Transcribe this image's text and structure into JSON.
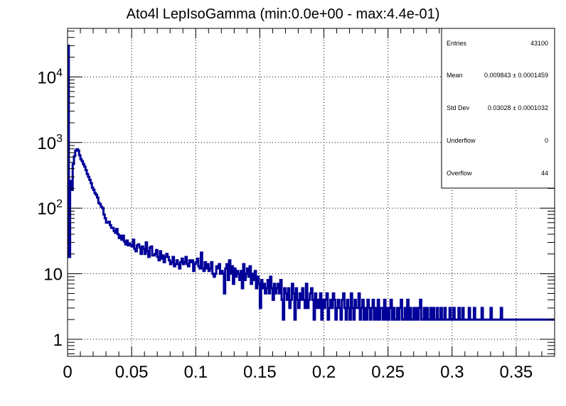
{
  "chart_data": {
    "type": "histogram",
    "title": "Ato4l LepIsoGamma (min:0.0e+00 - max:4.4e-01)",
    "xlabel": "",
    "ylabel": "",
    "xlim": [
      0,
      0.38
    ],
    "ylim": [
      0.55,
      55000
    ],
    "yscale": "log",
    "grid": true,
    "line_color": "#000099",
    "x_ticks": [
      {
        "value": 0,
        "label": "0"
      },
      {
        "value": 0.05,
        "label": "0.05"
      },
      {
        "value": 0.1,
        "label": "0.1"
      },
      {
        "value": 0.15,
        "label": "0.15"
      },
      {
        "value": 0.2,
        "label": "0.2"
      },
      {
        "value": 0.25,
        "label": "0.25"
      },
      {
        "value": 0.3,
        "label": "0.3"
      },
      {
        "value": 0.35,
        "label": "0.35"
      }
    ],
    "y_ticks": [
      {
        "value": 1,
        "base": "1",
        "exp": ""
      },
      {
        "value": 10,
        "base": "10",
        "exp": ""
      },
      {
        "value": 100,
        "base": "10",
        "exp": "2"
      },
      {
        "value": 1000,
        "base": "10",
        "exp": "3"
      },
      {
        "value": 10000,
        "base": "10",
        "exp": "4"
      }
    ],
    "bin_width": 0.001,
    "series": [
      {
        "values": [
          30000,
          18,
          260,
          190,
          470,
          620,
          750,
          790,
          760,
          640,
          560,
          520,
          470,
          430,
          380,
          330,
          300,
          270,
          240,
          205,
          190,
          170,
          160,
          145,
          120,
          115,
          105,
          100,
          80,
          70,
          60,
          60,
          62,
          55,
          50,
          50,
          45,
          42,
          48,
          40,
          35,
          38,
          33,
          38,
          31,
          28,
          32,
          27,
          29,
          27,
          26,
          33,
          24,
          22,
          27,
          28,
          25,
          20,
          26,
          24,
          20,
          30,
          22,
          18,
          25,
          26,
          19,
          19,
          20,
          23,
          18,
          16,
          22,
          17,
          19,
          15,
          18,
          20,
          18,
          16,
          14,
          15,
          18,
          13,
          14,
          16,
          14,
          12,
          15,
          17,
          14,
          15,
          18,
          14,
          13,
          16,
          15,
          16,
          11,
          14,
          15,
          17,
          13,
          12,
          21,
          12,
          11,
          15,
          12,
          14,
          11,
          12,
          15,
          10,
          9,
          10,
          13,
          12,
          14,
          10,
          11,
          10,
          5,
          12,
          14,
          8,
          16,
          10,
          13,
          7,
          12,
          9,
          11,
          10,
          8,
          11,
          6,
          14,
          8,
          10,
          12,
          9,
          13,
          7,
          10,
          8,
          11,
          6,
          9,
          7,
          3,
          8,
          6,
          7,
          5,
          6,
          8,
          5,
          9,
          6,
          4,
          7,
          5,
          6,
          7,
          5,
          8,
          4,
          2,
          6,
          5,
          4,
          6,
          3,
          4,
          7,
          5,
          2,
          6,
          4,
          3,
          5,
          4,
          6,
          4,
          3,
          7,
          3,
          4,
          5,
          6,
          4,
          2,
          5,
          3,
          4,
          3,
          5,
          2,
          4,
          3,
          4,
          5,
          2,
          3,
          4,
          3,
          5,
          4,
          2,
          3,
          4,
          3,
          2,
          4,
          5,
          3,
          2,
          4,
          3,
          2,
          5,
          3,
          2,
          4,
          3,
          3,
          5,
          2,
          3,
          4,
          2,
          3,
          2,
          4,
          3,
          2,
          3,
          4,
          2,
          3,
          2,
          4,
          2,
          3,
          3,
          2,
          4,
          2,
          3,
          2,
          3,
          4,
          2,
          3,
          2,
          2,
          3,
          2,
          3,
          4,
          2,
          2,
          3,
          2,
          4,
          2,
          3,
          2,
          2,
          3,
          2,
          3,
          2,
          3,
          4,
          2,
          2,
          3,
          2,
          3,
          2,
          2,
          3,
          2,
          3,
          2,
          2,
          3,
          2,
          2,
          3,
          2,
          2,
          3,
          2,
          2,
          2,
          3,
          2,
          2,
          3,
          2,
          2,
          2,
          3,
          2,
          2,
          3,
          2,
          2,
          2,
          2,
          3,
          2,
          2,
          2,
          3,
          2,
          2,
          2,
          2,
          2,
          3,
          2,
          2,
          2,
          2,
          2,
          2,
          3,
          2,
          2,
          2,
          2,
          2,
          2,
          2,
          3,
          2,
          2,
          2,
          2,
          2,
          2,
          2,
          2,
          2,
          2,
          2,
          2,
          2,
          2,
          2,
          2,
          2,
          2,
          2,
          2,
          2,
          2,
          2,
          2,
          2,
          2,
          2,
          2,
          2,
          2,
          2,
          2,
          2,
          2,
          2,
          2,
          2,
          2,
          2,
          2,
          2,
          2,
          2,
          2,
          2,
          2,
          2,
          2,
          2,
          2,
          2,
          2,
          2,
          2,
          2,
          2,
          2,
          2,
          2,
          2,
          2,
          2,
          2,
          2,
          2,
          2,
          2,
          2,
          2,
          2,
          2,
          2,
          2,
          2,
          2,
          2,
          2,
          2,
          2,
          2,
          2,
          2,
          2,
          2
        ]
      }
    ]
  },
  "stats": {
    "entries_label": "Entries",
    "entries_value": "43100",
    "mean_label": "Mean",
    "mean_value": "0.009843 ± 0.0001459",
    "stddev_label": "Std Dev",
    "stddev_value": "0.03028 ± 0.0001032",
    "underflow_label": "Underflow",
    "underflow_value": "0",
    "overflow_label": "Overflow",
    "overflow_value": "44"
  }
}
